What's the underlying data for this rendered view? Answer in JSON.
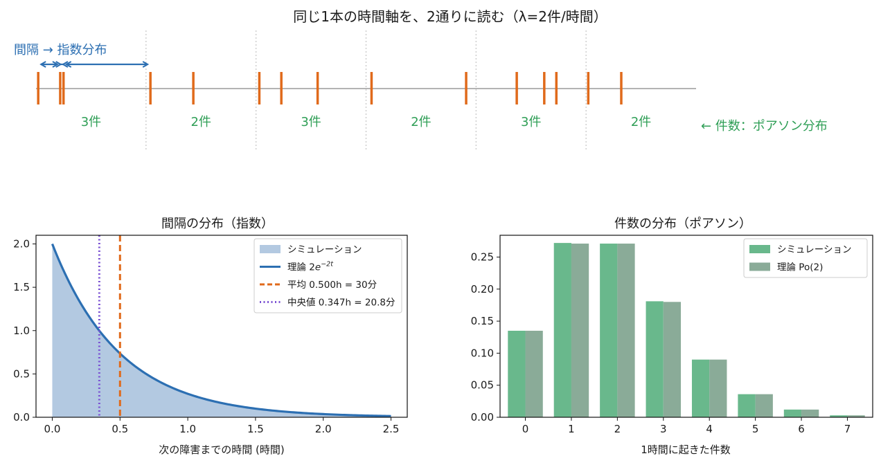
{
  "figure_title": "同じ1本の時間軸を、2通りに読む（λ=2件/時間）",
  "colors": {
    "event": "#e06a1b",
    "interval": "#2c6fb2",
    "count": "#2e9e55",
    "hist_fill": "#b3c9e1",
    "theory_line": "#2c6fb2",
    "mean_line": "#e06a1b",
    "median_line": "#7b52d3",
    "bar_sim": "#69b88c",
    "bar_theory": "#8aab98"
  },
  "timeline": {
    "interval_label": "間隔 → 指数分布",
    "count_label": "← 件数：ポアソン分布",
    "range_hours": [
      0,
      6
    ],
    "events": [
      0.02,
      0.22,
      0.25,
      1.04,
      1.43,
      2.03,
      2.23,
      2.56,
      3.05,
      3.91,
      4.37,
      4.62,
      4.73,
      5.02,
      5.32
    ],
    "count_labels": [
      "3件",
      "2件",
      "3件",
      "2件",
      "3件",
      "2件"
    ],
    "highlight_intervals": [
      [
        0.02,
        0.22
      ],
      [
        0.22,
        0.25
      ],
      [
        0.25,
        1.04
      ]
    ]
  },
  "chart_data": [
    {
      "type": "area",
      "title": "間隔の分布（指数）",
      "xlabel": "次の障害までの時間 (時間)",
      "ylabel": "",
      "xlim": [
        -0.12,
        2.62
      ],
      "ylim": [
        0,
        2.1
      ],
      "x_ticks": [
        0.0,
        0.5,
        1.0,
        1.5,
        2.0,
        2.5
      ],
      "x_tick_labels": [
        "0.0",
        "0.5",
        "1.0",
        "1.5",
        "2.0",
        "2.5"
      ],
      "y_ticks": [
        0.0,
        0.5,
        1.0,
        1.5,
        2.0
      ],
      "y_tick_labels": [
        "0.0",
        "0.5",
        "1.0",
        "1.5",
        "2.0"
      ],
      "rate": 2,
      "domain": [
        0,
        2.5
      ],
      "mean": 0.5,
      "median": 0.347,
      "legend_position": "upper right",
      "legend": [
        {
          "kind": "patch",
          "label": "シミュレーション"
        },
        {
          "kind": "line",
          "label": "理論 2e^{-2t}",
          "label_main": "理論 2",
          "label_e": "e",
          "label_exp": "−2t"
        },
        {
          "kind": "dashed",
          "label": "平均 0.500h = 30分"
        },
        {
          "kind": "dotted",
          "label": "中央値 0.347h = 20.8分"
        }
      ]
    },
    {
      "type": "bar",
      "title": "件数の分布（ポアソン）",
      "xlabel": "1時間に起きた件数",
      "ylabel": "",
      "categories": [
        "0",
        "1",
        "2",
        "3",
        "4",
        "5",
        "6",
        "7"
      ],
      "xlim": [
        -0.55,
        7.55
      ],
      "ylim": [
        0,
        0.284
      ],
      "y_ticks": [
        0.0,
        0.05,
        0.1,
        0.15,
        0.2,
        0.25
      ],
      "y_tick_labels": [
        "0.00",
        "0.05",
        "0.10",
        "0.15",
        "0.20",
        "0.25"
      ],
      "legend_position": "upper right",
      "series": [
        {
          "name": "シミュレーション",
          "values": [
            0.135,
            0.272,
            0.271,
            0.181,
            0.09,
            0.036,
            0.012,
            0.003
          ]
        },
        {
          "name": "理論 Po(2)",
          "values": [
            0.135,
            0.271,
            0.271,
            0.18,
            0.09,
            0.036,
            0.012,
            0.003
          ]
        }
      ]
    }
  ]
}
